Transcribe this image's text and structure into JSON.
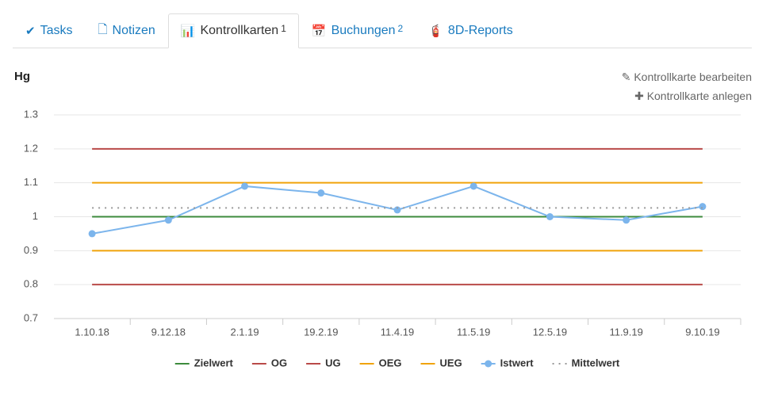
{
  "tabs": [
    {
      "label": "Tasks"
    },
    {
      "label": "Notizen"
    },
    {
      "label": "Kontrollkarten",
      "badge": 1
    },
    {
      "label": "Buchungen",
      "badge": 2
    },
    {
      "label": "8D-Reports"
    }
  ],
  "active_tab": 2,
  "actions": [
    "Kontrollkarte bearbeiten",
    "Kontrollkarte anlegen"
  ],
  "chart_data": {
    "type": "line",
    "title": "Hg",
    "categories": [
      "1.10.18",
      "9.12.18",
      "2.1.19",
      "19.2.19",
      "11.4.19",
      "11.5.19",
      "12.5.19",
      "11.9.19",
      "9.10.19"
    ],
    "series": [
      {
        "name": "Zielwert",
        "color": "#3d8b3d",
        "values": [
          1,
          1,
          1,
          1,
          1,
          1,
          1,
          1,
          1
        ]
      },
      {
        "name": "OG",
        "color": "#b94a48",
        "values": [
          1.2,
          1.2,
          1.2,
          1.2,
          1.2,
          1.2,
          1.2,
          1.2,
          1.2
        ]
      },
      {
        "name": "UG",
        "color": "#b94a48",
        "values": [
          0.8,
          0.8,
          0.8,
          0.8,
          0.8,
          0.8,
          0.8,
          0.8,
          0.8
        ]
      },
      {
        "name": "OEG",
        "color": "#f0a30a",
        "values": [
          1.1,
          1.1,
          1.1,
          1.1,
          1.1,
          1.1,
          1.1,
          1.1,
          1.1
        ]
      },
      {
        "name": "UEG",
        "color": "#f0a30a",
        "values": [
          0.9,
          0.9,
          0.9,
          0.9,
          0.9,
          0.9,
          0.9,
          0.9,
          0.9
        ]
      },
      {
        "name": "Istwert",
        "color": "#7cb5ec",
        "marker": true,
        "values": [
          0.95,
          0.99,
          1.09,
          1.07,
          1.02,
          1.09,
          1.0,
          0.99,
          1.03
        ]
      },
      {
        "name": "Mittelwert",
        "color": "#999999",
        "dash": "dotted",
        "values": [
          1.026,
          1.026,
          1.026,
          1.026,
          1.026,
          1.026,
          1.026,
          1.026,
          1.026
        ]
      }
    ],
    "ylim": [
      0.7,
      1.3
    ],
    "yticks": [
      0.7,
      0.8,
      0.9,
      1,
      1.1,
      1.2,
      1.3
    ],
    "grid": true
  }
}
